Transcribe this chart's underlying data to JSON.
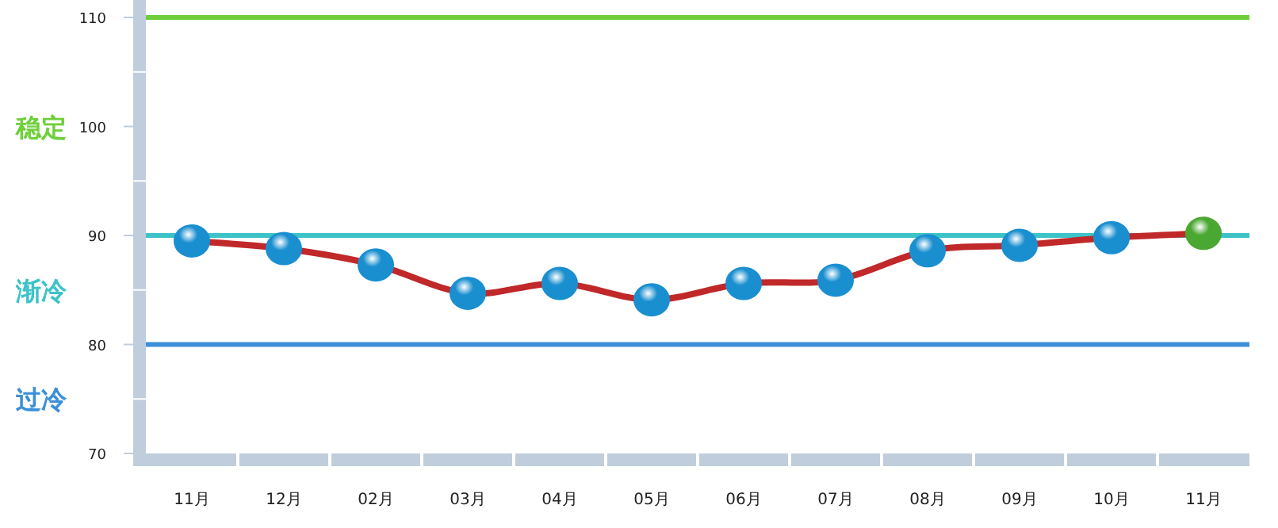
{
  "chart_data": {
    "type": "line",
    "categories": [
      "11月",
      "12月",
      "02月",
      "03月",
      "04月",
      "05月",
      "06月",
      "07月",
      "08月",
      "09月",
      "10月",
      "11月"
    ],
    "series": [
      {
        "color": "#c0282a",
        "values": [
          89.5,
          88.8,
          87.3,
          84.7,
          85.6,
          84.1,
          85.6,
          85.9,
          88.6,
          89.1,
          89.8,
          90.2
        ],
        "colors": [
          "#1a8fd0",
          "#1a8fd0",
          "#1a8fd0",
          "#1a8fd0",
          "#1a8fd0",
          "#1a8fd0",
          "#1a8fd0",
          "#1a8fd0",
          "#1a8fd0",
          "#1a8fd0",
          "#1a8fd0",
          "#4aa832"
        ]
      }
    ],
    "marker": "circle",
    "ylim": [
      70,
      110
    ],
    "yticks": [
      70,
      {
        "value": 75,
        "label": null
      },
      80,
      {
        "value": 85,
        "label": null
      },
      90,
      {
        "value": 95,
        "label": null
      },
      100,
      {
        "value": 105,
        "label": null
      },
      110
    ],
    "ref_lines": [
      {
        "axis": "y",
        "value": 110,
        "color": "#6fcf3a"
      },
      {
        "axis": "y",
        "value": 90,
        "color": "#3cc3c8"
      },
      {
        "axis": "y",
        "value": 80,
        "color": "#3a8fd8"
      }
    ],
    "annotations": [
      "稳定",
      "渐冷",
      "过冷"
    ]
  }
}
